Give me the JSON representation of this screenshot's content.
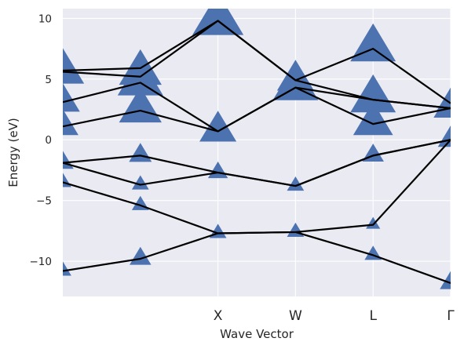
{
  "chart_data": {
    "type": "line",
    "xlabel": "Wave Vector",
    "ylabel": "Energy (eV)",
    "xlim": [
      0,
      5
    ],
    "ylim": [
      -12.9,
      10.8
    ],
    "x_ticks": [
      {
        "x": 2,
        "label": "X"
      },
      {
        "x": 3,
        "label": "W"
      },
      {
        "x": 4,
        "label": "L"
      },
      {
        "x": 5,
        "label": "Γ"
      }
    ],
    "y_ticks": [
      10,
      5,
      0,
      -5,
      -10
    ],
    "y_tick_labels": [
      "10",
      "5",
      "0",
      "−5",
      "−10"
    ],
    "grid": true,
    "background": "#eaeaf2",
    "grid_color": "#ffffff",
    "line_color": "#000000",
    "marker_color": "#4c72b0",
    "x": [
      0,
      1,
      2,
      3,
      4,
      5
    ],
    "series": [
      {
        "values": [
          -10.8,
          -9.8,
          -7.7,
          -7.6,
          -9.5,
          -11.8
        ]
      },
      {
        "values": [
          -3.5,
          -5.4,
          -7.7,
          -7.6,
          -7.0,
          0.0
        ]
      },
      {
        "values": [
          -1.9,
          -3.7,
          -2.7,
          -3.8,
          -1.3,
          0.0
        ]
      },
      {
        "values": [
          -1.9,
          -1.3,
          -2.7,
          -3.8,
          -1.3,
          0.0
        ]
      },
      {
        "values": [
          1.1,
          2.4,
          0.7,
          4.3,
          1.3,
          2.6
        ]
      },
      {
        "values": [
          3.1,
          4.7,
          0.7,
          4.3,
          3.3,
          2.6
        ]
      },
      {
        "values": [
          5.6,
          5.2,
          9.8,
          4.9,
          3.3,
          2.6
        ]
      },
      {
        "values": [
          5.7,
          5.9,
          9.8,
          4.9,
          7.5,
          3.0
        ]
      }
    ],
    "markers": [
      {
        "x": 0,
        "y": -10.8,
        "size": 0.3
      },
      {
        "x": 0,
        "y": -3.5,
        "size": 0.3
      },
      {
        "x": 0,
        "y": -1.9,
        "size": 0.38
      },
      {
        "x": 0,
        "y": 1.1,
        "size": 0.55
      },
      {
        "x": 0,
        "y": 3.1,
        "size": 0.6
      },
      {
        "x": 0,
        "y": 5.6,
        "size": 0.75
      },
      {
        "x": 1,
        "y": -9.8,
        "size": 0.38
      },
      {
        "x": 1,
        "y": -5.4,
        "size": 0.3
      },
      {
        "x": 1,
        "y": -3.7,
        "size": 0.3
      },
      {
        "x": 1,
        "y": -1.3,
        "size": 0.4
      },
      {
        "x": 1,
        "y": 2.4,
        "size": 0.75
      },
      {
        "x": 1,
        "y": 4.7,
        "size": 0.8
      },
      {
        "x": 1,
        "y": 5.5,
        "size": 0.75
      },
      {
        "x": 2,
        "y": -7.7,
        "size": 0.3
      },
      {
        "x": 2,
        "y": -2.7,
        "size": 0.35
      },
      {
        "x": 2,
        "y": 0.7,
        "size": 0.65
      },
      {
        "x": 2,
        "y": 9.8,
        "size": 0.9
      },
      {
        "x": 3,
        "y": -7.6,
        "size": 0.3
      },
      {
        "x": 3,
        "y": -3.8,
        "size": 0.3
      },
      {
        "x": 3,
        "y": 4.3,
        "size": 0.8
      },
      {
        "x": 3,
        "y": 4.9,
        "size": 0.65
      },
      {
        "x": 4,
        "y": -9.5,
        "size": 0.3
      },
      {
        "x": 4,
        "y": -7.0,
        "size": 0.25
      },
      {
        "x": 4,
        "y": -1.3,
        "size": 0.38
      },
      {
        "x": 4,
        "y": 1.3,
        "size": 0.7
      },
      {
        "x": 4,
        "y": 3.3,
        "size": 0.8
      },
      {
        "x": 4,
        "y": 7.5,
        "size": 0.8
      },
      {
        "x": 5,
        "y": -11.8,
        "size": 0.38
      },
      {
        "x": 5,
        "y": 0.0,
        "size": 0.45
      },
      {
        "x": 5,
        "y": 2.6,
        "size": 0.6
      },
      {
        "x": 5,
        "y": 3.0,
        "size": 0.5
      }
    ]
  }
}
